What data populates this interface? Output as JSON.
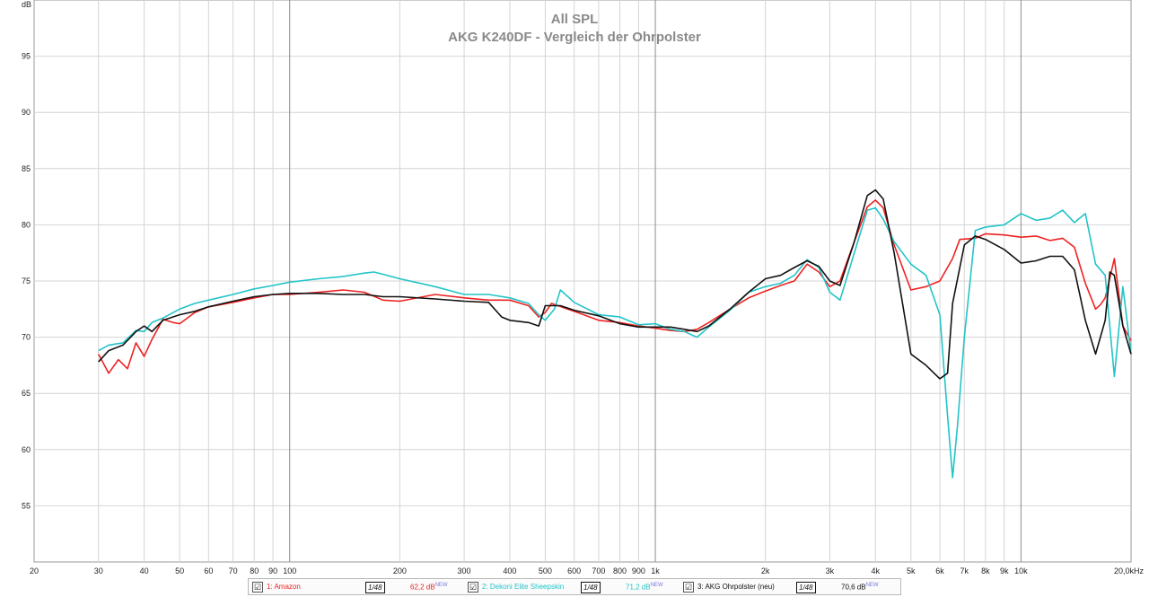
{
  "chart_data": {
    "type": "line",
    "title": "All SPL",
    "subtitle": "AKG K240DF - Vergleich der Ohrpolster",
    "ylabel": "dB",
    "xlabel": "",
    "x_scale": "log",
    "xlim": [
      20,
      20000
    ],
    "ylim": [
      50,
      100
    ],
    "grid": true,
    "y_ticks": [
      "95",
      "90",
      "85",
      "80",
      "75",
      "70",
      "65",
      "60",
      "55"
    ],
    "x_ticks": [
      {
        "v": 20,
        "l": "20"
      },
      {
        "v": 30,
        "l": "30"
      },
      {
        "v": 40,
        "l": "40"
      },
      {
        "v": 50,
        "l": "50"
      },
      {
        "v": 60,
        "l": "60"
      },
      {
        "v": 70,
        "l": "70"
      },
      {
        "v": 80,
        "l": "80"
      },
      {
        "v": 90,
        "l": "90"
      },
      {
        "v": 100,
        "l": "100"
      },
      {
        "v": 200,
        "l": "200"
      },
      {
        "v": 300,
        "l": "300"
      },
      {
        "v": 400,
        "l": "400"
      },
      {
        "v": 500,
        "l": "500"
      },
      {
        "v": 600,
        "l": "600"
      },
      {
        "v": 700,
        "l": "700"
      },
      {
        "v": 800,
        "l": "800"
      },
      {
        "v": 900,
        "l": "900"
      },
      {
        "v": 1000,
        "l": "1k"
      },
      {
        "v": 2000,
        "l": "2k"
      },
      {
        "v": 3000,
        "l": "3k"
      },
      {
        "v": 4000,
        "l": "4k"
      },
      {
        "v": 5000,
        "l": "5k"
      },
      {
        "v": 6000,
        "l": "6k"
      },
      {
        "v": 7000,
        "l": "7k"
      },
      {
        "v": 8000,
        "l": "8k"
      },
      {
        "v": 9000,
        "l": "9k"
      },
      {
        "v": 10000,
        "l": "10k"
      },
      {
        "v": 20000,
        "l": "20,0kHz"
      }
    ],
    "series": [
      {
        "name": "1: Amazon",
        "color": "#ee2222",
        "points": [
          [
            30,
            68.5
          ],
          [
            32,
            66.8
          ],
          [
            34,
            68
          ],
          [
            36,
            67.2
          ],
          [
            38,
            69.5
          ],
          [
            40,
            68.3
          ],
          [
            42,
            69.8
          ],
          [
            45,
            71.6
          ],
          [
            48,
            71.3
          ],
          [
            50,
            71.2
          ],
          [
            55,
            72.2
          ],
          [
            60,
            72.7
          ],
          [
            70,
            73.1
          ],
          [
            80,
            73.5
          ],
          [
            90,
            73.8
          ],
          [
            100,
            73.8
          ],
          [
            120,
            74.0
          ],
          [
            140,
            74.2
          ],
          [
            160,
            74.0
          ],
          [
            180,
            73.3
          ],
          [
            200,
            73.2
          ],
          [
            250,
            73.8
          ],
          [
            300,
            73.5
          ],
          [
            350,
            73.3
          ],
          [
            400,
            73.3
          ],
          [
            450,
            72.8
          ],
          [
            480,
            71.8
          ],
          [
            500,
            72.2
          ],
          [
            520,
            73.0
          ],
          [
            600,
            72.3
          ],
          [
            700,
            71.5
          ],
          [
            800,
            71.3
          ],
          [
            900,
            71.0
          ],
          [
            1000,
            70.8
          ],
          [
            1100,
            70.6
          ],
          [
            1200,
            70.5
          ],
          [
            1300,
            70.7
          ],
          [
            1400,
            71.3
          ],
          [
            1600,
            72.5
          ],
          [
            1800,
            73.5
          ],
          [
            2000,
            74.1
          ],
          [
            2200,
            74.6
          ],
          [
            2400,
            75.0
          ],
          [
            2600,
            76.5
          ],
          [
            2800,
            75.8
          ],
          [
            3000,
            74.5
          ],
          [
            3200,
            75.0
          ],
          [
            3500,
            78.5
          ],
          [
            3800,
            81.6
          ],
          [
            4000,
            82.2
          ],
          [
            4200,
            81.5
          ],
          [
            4500,
            78.2
          ],
          [
            5000,
            74.2
          ],
          [
            5500,
            74.5
          ],
          [
            6000,
            75.0
          ],
          [
            6500,
            77.0
          ],
          [
            6800,
            78.7
          ],
          [
            7500,
            78.8
          ],
          [
            8000,
            79.2
          ],
          [
            9000,
            79.1
          ],
          [
            10000,
            78.9
          ],
          [
            11000,
            79.0
          ],
          [
            12000,
            78.6
          ],
          [
            13000,
            78.8
          ],
          [
            14000,
            78.0
          ],
          [
            15000,
            74.8
          ],
          [
            16000,
            72.5
          ],
          [
            16500,
            72.9
          ],
          [
            17000,
            73.5
          ],
          [
            18000,
            77.0
          ],
          [
            19000,
            71.0
          ],
          [
            20000,
            69.7
          ]
        ]
      },
      {
        "name": "2: Dekoni Elite Sheepskin",
        "color": "#22c4c8",
        "points": [
          [
            30,
            68.8
          ],
          [
            32,
            69.3
          ],
          [
            35,
            69.5
          ],
          [
            38,
            70.6
          ],
          [
            40,
            70.5
          ],
          [
            42,
            71.3
          ],
          [
            45,
            71.7
          ],
          [
            50,
            72.5
          ],
          [
            55,
            73.0
          ],
          [
            60,
            73.3
          ],
          [
            70,
            73.8
          ],
          [
            80,
            74.3
          ],
          [
            90,
            74.6
          ],
          [
            100,
            74.9
          ],
          [
            120,
            75.2
          ],
          [
            140,
            75.4
          ],
          [
            160,
            75.7
          ],
          [
            170,
            75.8
          ],
          [
            180,
            75.6
          ],
          [
            200,
            75.2
          ],
          [
            250,
            74.5
          ],
          [
            300,
            73.8
          ],
          [
            350,
            73.8
          ],
          [
            400,
            73.5
          ],
          [
            450,
            73.0
          ],
          [
            480,
            72.0
          ],
          [
            500,
            71.5
          ],
          [
            530,
            72.5
          ],
          [
            550,
            74.2
          ],
          [
            600,
            73.1
          ],
          [
            700,
            72.0
          ],
          [
            800,
            71.8
          ],
          [
            900,
            71.1
          ],
          [
            1000,
            71.2
          ],
          [
            1100,
            70.7
          ],
          [
            1200,
            70.5
          ],
          [
            1300,
            70.0
          ],
          [
            1400,
            70.9
          ],
          [
            1600,
            72.4
          ],
          [
            1800,
            74.0
          ],
          [
            2000,
            74.5
          ],
          [
            2200,
            74.8
          ],
          [
            2400,
            75.5
          ],
          [
            2600,
            76.9
          ],
          [
            2800,
            76.2
          ],
          [
            3000,
            74.0
          ],
          [
            3200,
            73.3
          ],
          [
            3500,
            77.5
          ],
          [
            3800,
            81.3
          ],
          [
            4000,
            81.5
          ],
          [
            4200,
            80.5
          ],
          [
            4500,
            78.5
          ],
          [
            5000,
            76.5
          ],
          [
            5500,
            75.5
          ],
          [
            6000,
            72.0
          ],
          [
            6300,
            63.0
          ],
          [
            6500,
            57.5
          ],
          [
            6700,
            62.0
          ],
          [
            7000,
            70.0
          ],
          [
            7500,
            79.5
          ],
          [
            8000,
            79.8
          ],
          [
            9000,
            80.0
          ],
          [
            10000,
            81.0
          ],
          [
            11000,
            80.4
          ],
          [
            12000,
            80.6
          ],
          [
            13000,
            81.3
          ],
          [
            14000,
            80.2
          ],
          [
            15000,
            81.0
          ],
          [
            16000,
            76.5
          ],
          [
            17000,
            75.5
          ],
          [
            18000,
            66.5
          ],
          [
            19000,
            74.5
          ],
          [
            20000,
            68.5
          ]
        ]
      },
      {
        "name": "3: AKG Ohrpolster (neu)",
        "color": "#111111",
        "points": [
          [
            30,
            67.8
          ],
          [
            32,
            68.8
          ],
          [
            35,
            69.3
          ],
          [
            38,
            70.5
          ],
          [
            40,
            71.0
          ],
          [
            42,
            70.5
          ],
          [
            45,
            71.5
          ],
          [
            50,
            72.0
          ],
          [
            55,
            72.3
          ],
          [
            60,
            72.7
          ],
          [
            70,
            73.2
          ],
          [
            80,
            73.6
          ],
          [
            90,
            73.8
          ],
          [
            100,
            73.9
          ],
          [
            120,
            73.9
          ],
          [
            140,
            73.8
          ],
          [
            160,
            73.8
          ],
          [
            180,
            73.6
          ],
          [
            200,
            73.6
          ],
          [
            250,
            73.4
          ],
          [
            300,
            73.2
          ],
          [
            350,
            73.1
          ],
          [
            380,
            71.8
          ],
          [
            400,
            71.5
          ],
          [
            450,
            71.3
          ],
          [
            480,
            71.0
          ],
          [
            500,
            72.8
          ],
          [
            550,
            72.8
          ],
          [
            600,
            72.4
          ],
          [
            700,
            71.9
          ],
          [
            800,
            71.2
          ],
          [
            900,
            70.9
          ],
          [
            1000,
            70.9
          ],
          [
            1100,
            70.9
          ],
          [
            1200,
            70.7
          ],
          [
            1300,
            70.5
          ],
          [
            1400,
            71.0
          ],
          [
            1600,
            72.5
          ],
          [
            1800,
            74.0
          ],
          [
            2000,
            75.2
          ],
          [
            2200,
            75.5
          ],
          [
            2400,
            76.2
          ],
          [
            2600,
            76.8
          ],
          [
            2800,
            76.3
          ],
          [
            3000,
            75.0
          ],
          [
            3200,
            74.6
          ],
          [
            3500,
            78.5
          ],
          [
            3800,
            82.6
          ],
          [
            4000,
            83.1
          ],
          [
            4200,
            82.3
          ],
          [
            4500,
            77.5
          ],
          [
            5000,
            68.5
          ],
          [
            5500,
            67.5
          ],
          [
            6000,
            66.3
          ],
          [
            6300,
            66.8
          ],
          [
            6500,
            73.0
          ],
          [
            7000,
            78.2
          ],
          [
            7500,
            79.0
          ],
          [
            8000,
            78.7
          ],
          [
            9000,
            77.8
          ],
          [
            10000,
            76.6
          ],
          [
            11000,
            76.8
          ],
          [
            12000,
            77.2
          ],
          [
            13000,
            77.2
          ],
          [
            14000,
            76.0
          ],
          [
            15000,
            71.5
          ],
          [
            16000,
            68.5
          ],
          [
            17000,
            71.5
          ],
          [
            17500,
            75.8
          ],
          [
            18000,
            75.5
          ],
          [
            19000,
            71.0
          ],
          [
            20000,
            68.5
          ]
        ]
      }
    ]
  },
  "legend": [
    {
      "check": "☑",
      "name": "1: Amazon",
      "smoothing": "1/48",
      "value": "62,2 dB",
      "badge": "NEW",
      "color": "#ee2222"
    },
    {
      "check": "☑",
      "name": "2: Dekoni Elite Sheepskin",
      "smoothing": "1/48",
      "value": "71,2 dB",
      "badge": "NEW",
      "color": "#22c4c8"
    },
    {
      "check": "☑",
      "name": "3: AKG Ohrpolster (neu)",
      "smoothing": "1/48",
      "value": "70,6 dB",
      "badge": "NEW",
      "color": "#111111"
    }
  ]
}
